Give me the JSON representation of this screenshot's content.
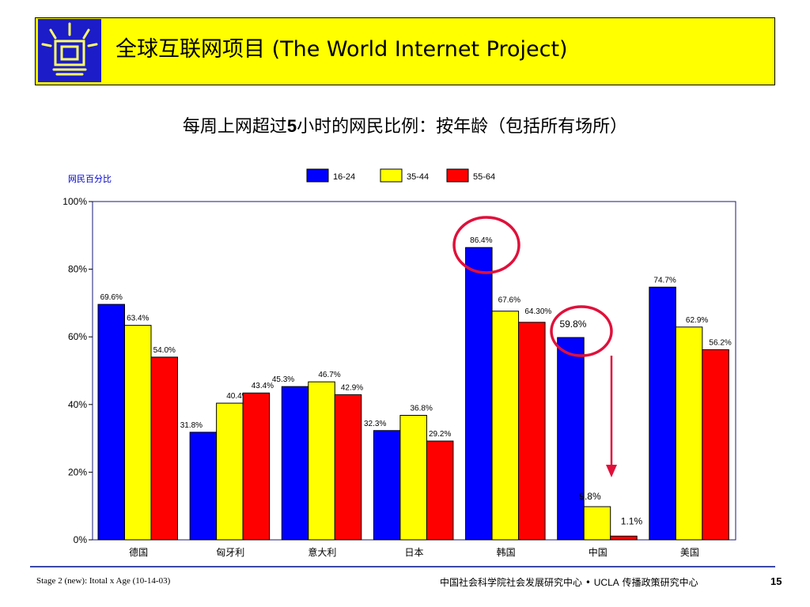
{
  "header": {
    "title": "全球互联网项目 (The World Internet Project)",
    "bar_color": "#ffff00",
    "logo_color": "#1c1cc8"
  },
  "slide": {
    "subtitle_part1": "每周上网超过",
    "subtitle_bold": "5",
    "subtitle_part2": "小时的网民比例：按年龄（包括所有场所）"
  },
  "chart_data": {
    "type": "bar",
    "ylabel": "网民百分比",
    "ylim": [
      0,
      100
    ],
    "yticks": [
      0,
      20,
      40,
      60,
      80,
      100
    ],
    "ytick_labels": [
      "0%",
      "20%",
      "40%",
      "60%",
      "80%",
      "100%"
    ],
    "categories": [
      "德国",
      "匈牙利",
      "意大利",
      "日本",
      "韩国",
      "中国",
      "美国"
    ],
    "series": [
      {
        "name": "16-24",
        "color": "#0000ff",
        "values": [
          69.6,
          31.8,
          45.3,
          32.3,
          86.4,
          59.8,
          74.7
        ],
        "labels": [
          "69.6%",
          "31.8%",
          "45.3%",
          "32.3%",
          "86.4%",
          "59.8%",
          "74.7%"
        ]
      },
      {
        "name": "35-44",
        "color": "#ffff00",
        "values": [
          63.4,
          40.4,
          46.7,
          36.8,
          67.6,
          9.8,
          62.9
        ],
        "labels": [
          "63.4%",
          "40.4%",
          "46.7%",
          "36.8%",
          "67.6%",
          "9.8%",
          "62.9%"
        ]
      },
      {
        "name": "55-64",
        "color": "#ff0000",
        "values": [
          54.0,
          43.4,
          42.9,
          29.2,
          64.3,
          1.1,
          56.2
        ],
        "labels": [
          "54.0%",
          "43.4%",
          "42.9%",
          "29.2%",
          "64.30%",
          "1.1%",
          "56.2%"
        ]
      }
    ],
    "legend_position": "top",
    "annotations": [
      "red circle around 韩国 16-24 bar label",
      "red circle around 中国 16-24 bar label",
      "red arrow pointing down at 中国 55-64 bar"
    ],
    "annotation_color": "#e0103a"
  },
  "footer": {
    "left": "Stage 2 (new): Itotal x Age (10-14-03)",
    "center_cn": "中国社会科学院社会发展研究中心",
    "center_dot": "•",
    "center_ucla": "UCLA",
    "center_cn2": "传播政策研究中心",
    "page": "15"
  }
}
